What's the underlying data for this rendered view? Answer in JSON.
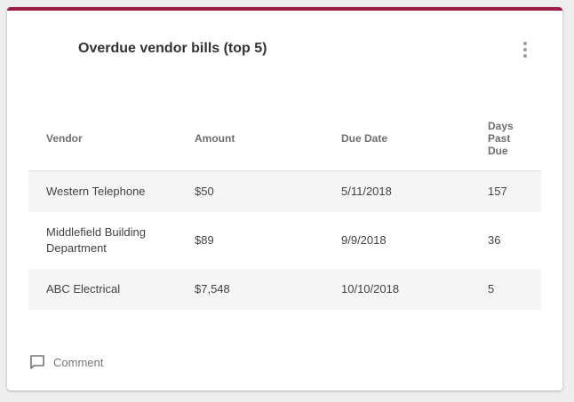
{
  "colors": {
    "accent": "#9c1c44",
    "header_text": "#6f6f6f",
    "row_shade": "#f5f5f5"
  },
  "card": {
    "title": "Overdue vendor bills (top 5)",
    "menu_icon": "more-vertical-icon"
  },
  "table": {
    "headers": {
      "vendor": "Vendor",
      "amount": "Amount",
      "due_date": "Due Date",
      "days_past_due": "Days Past Due"
    },
    "rows": [
      {
        "vendor": "Western Telephone",
        "amount": "$50",
        "due_date": "5/11/2018",
        "days_past_due": "157"
      },
      {
        "vendor": "Middlefield Building Department",
        "amount": "$89",
        "due_date": "9/9/2018",
        "days_past_due": "36"
      },
      {
        "vendor": "ABC Electrical",
        "amount": "$7,548",
        "due_date": "10/10/2018",
        "days_past_due": "5"
      }
    ]
  },
  "footer": {
    "comment_icon": "comment-icon",
    "comment_label": "Comment"
  }
}
